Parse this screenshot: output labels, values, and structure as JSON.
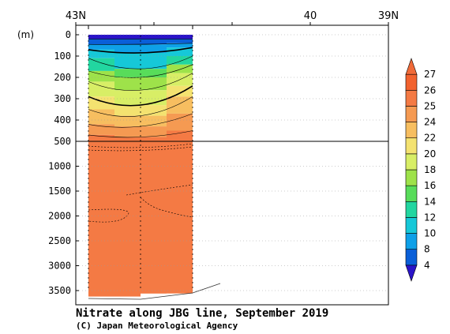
{
  "chart_data": {
    "type": "heatmap",
    "title": "Nitrate along JBG line, September 2019",
    "credit": "(C) Japan Meteorological Agency",
    "ylabel": "(m)",
    "x_axis": {
      "ticks": [
        "43N",
        "40",
        "39N"
      ],
      "tick_lats": [
        43,
        40,
        39
      ],
      "range": [
        43,
        39
      ]
    },
    "y_axis_upper": {
      "ticks": [
        "0",
        "100",
        "200",
        "300",
        "400",
        "500"
      ],
      "range": [
        0,
        500
      ]
    },
    "y_axis_lower": {
      "ticks": [
        "500",
        "1000",
        "1500",
        "2000",
        "2500",
        "3000",
        "3500"
      ],
      "range": [
        500,
        3700
      ]
    },
    "data_extent_lat": [
      42.85,
      41.5
    ],
    "colorbar": {
      "labels": [
        "4",
        "8",
        "10",
        "12",
        "14",
        "16",
        "18",
        "20",
        "22",
        "24",
        "25",
        "26",
        "27"
      ],
      "colors": [
        "#2a14c8",
        "#0a5fd8",
        "#0ea0e8",
        "#16c8d8",
        "#22d6a0",
        "#58dc5a",
        "#9ee24a",
        "#d8ee66",
        "#f4e270",
        "#f7be60",
        "#f59a52",
        "#f47a44",
        "#f2622e",
        "#f06a38"
      ]
    },
    "columns": [
      {
        "name": "west",
        "layers": [
          {
            "depth": [
              0,
              20
            ],
            "value": 4
          },
          {
            "depth": [
              20,
              45
            ],
            "value": 8
          },
          {
            "depth": [
              45,
              70
            ],
            "value": 10
          },
          {
            "depth": [
              70,
              110
            ],
            "value": 12
          },
          {
            "depth": [
              110,
              170
            ],
            "value": 14
          },
          {
            "depth": [
              170,
              220
            ],
            "value": 18
          },
          {
            "depth": [
              220,
              290
            ],
            "value": 20
          },
          {
            "depth": [
              290,
              350
            ],
            "value": 22
          },
          {
            "depth": [
              350,
              420
            ],
            "value": 24
          },
          {
            "depth": [
              420,
              470
            ],
            "value": 25
          },
          {
            "depth": [
              470,
              3620
            ],
            "value": 26
          }
        ]
      },
      {
        "name": "mid",
        "layers": [
          {
            "depth": [
              0,
              20
            ],
            "value": 4
          },
          {
            "depth": [
              20,
              45
            ],
            "value": 8
          },
          {
            "depth": [
              45,
              85
            ],
            "value": 10
          },
          {
            "depth": [
              85,
              160
            ],
            "value": 12
          },
          {
            "depth": [
              160,
              200
            ],
            "value": 16
          },
          {
            "depth": [
              200,
              260
            ],
            "value": 18
          },
          {
            "depth": [
              260,
              330
            ],
            "value": 20
          },
          {
            "depth": [
              330,
              380
            ],
            "value": 22
          },
          {
            "depth": [
              380,
              430
            ],
            "value": 24
          },
          {
            "depth": [
              430,
              480
            ],
            "value": 25
          },
          {
            "depth": [
              480,
              3620
            ],
            "value": 26
          }
        ]
      },
      {
        "name": "east",
        "layers": [
          {
            "depth": [
              0,
              20
            ],
            "value": 4
          },
          {
            "depth": [
              20,
              40
            ],
            "value": 8
          },
          {
            "depth": [
              40,
              60
            ],
            "value": 10
          },
          {
            "depth": [
              60,
              100
            ],
            "value": 12
          },
          {
            "depth": [
              100,
              140
            ],
            "value": 14
          },
          {
            "depth": [
              140,
              180
            ],
            "value": 18
          },
          {
            "depth": [
              180,
              240
            ],
            "value": 20
          },
          {
            "depth": [
              240,
              290
            ],
            "value": 22
          },
          {
            "depth": [
              290,
              370
            ],
            "value": 24
          },
          {
            "depth": [
              370,
              450
            ],
            "value": 25
          },
          {
            "depth": [
              450,
              3560
            ],
            "value": 26
          }
        ]
      }
    ],
    "bottom_depth": [
      3620,
      3620,
      3560
    ]
  }
}
